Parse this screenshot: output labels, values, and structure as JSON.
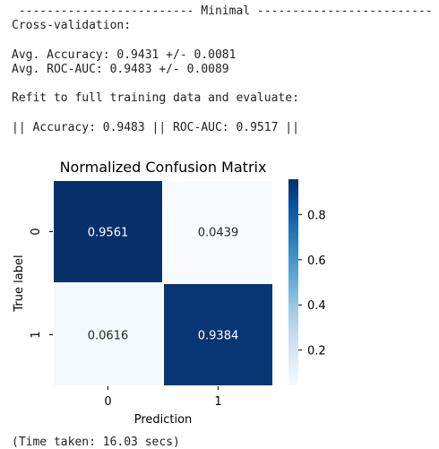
{
  "output": {
    "header_line": " ------------------------- Minimal -------------------------",
    "cv_title": "Cross-validation:",
    "cv_accuracy": "Avg. Accuracy: 0.9431 +/- 0.0081",
    "cv_rocauc": "Avg. ROC-AUC: 0.9483 +/- 0.0089",
    "refit_title": "Refit to full training data and evaluate:",
    "refit_result": "|| Accuracy: 0.9483 || ROC-AUC: 0.9517 ||",
    "time_taken": "(Time taken: 16.03 secs)"
  },
  "chart_data": {
    "type": "heatmap",
    "title": "Normalized Confusion Matrix",
    "xlabel": "Prediction",
    "ylabel": "True label",
    "x_categories": [
      "0",
      "1"
    ],
    "y_categories": [
      "0",
      "1"
    ],
    "values": [
      [
        0.9561,
        0.0439
      ],
      [
        0.0616,
        0.9384
      ]
    ],
    "value_labels": [
      [
        "0.9561",
        "0.0439"
      ],
      [
        "0.0616",
        "0.9384"
      ]
    ],
    "colormap": "Blues",
    "colorbar": {
      "range": [
        0.0439,
        0.9561
      ],
      "ticks": [
        0.2,
        0.4,
        0.6,
        0.8
      ],
      "tick_labels": [
        "0.2",
        "0.4",
        "0.6",
        "0.8"
      ]
    },
    "colors": {
      "low": "#f7fbff",
      "high": "#08306b"
    }
  }
}
